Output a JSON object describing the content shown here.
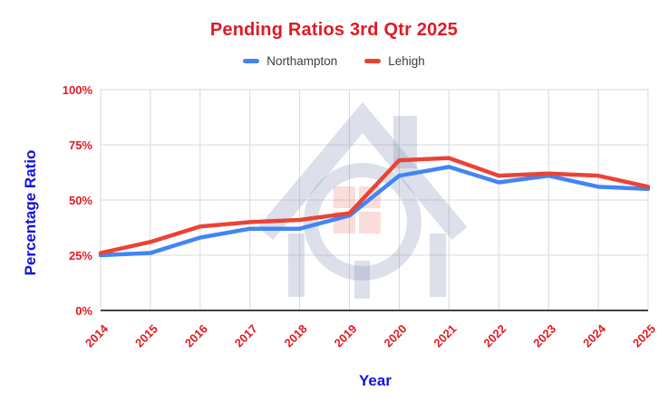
{
  "colors": {
    "text_red": "#e01a22",
    "text_blue": "#1212dc",
    "series_blue": "#4285f4",
    "series_red": "#ea4335",
    "grid": "#d9d9d9",
    "axis_line": "#424242",
    "legend_text": "#3c4043"
  },
  "chart_data": {
    "type": "line",
    "title": "Pending Ratios 3rd Qtr 2025",
    "xlabel": "Year",
    "ylabel": "Percentage Ratio",
    "x": [
      2014,
      2015,
      2016,
      2017,
      2018,
      2019,
      2020,
      2021,
      2022,
      2023,
      2024,
      2025
    ],
    "series": [
      {
        "name": "Northampton",
        "color": "#4285f4",
        "values": [
          25,
          26,
          33,
          37,
          37,
          43,
          61,
          65,
          58,
          61,
          56,
          55
        ]
      },
      {
        "name": "Lehigh",
        "color": "#ea4335",
        "values": [
          26,
          31,
          38,
          40,
          41,
          44,
          68,
          69,
          61,
          62,
          61,
          56
        ]
      }
    ],
    "ylim": [
      0,
      100
    ],
    "yticks": [
      {
        "value": 0,
        "label": "0%"
      },
      {
        "value": 25,
        "label": "25%"
      },
      {
        "value": 50,
        "label": "50%"
      },
      {
        "value": 75,
        "label": "75%"
      },
      {
        "value": 100,
        "label": "100%"
      }
    ],
    "grid": true,
    "legend_position": "top"
  }
}
